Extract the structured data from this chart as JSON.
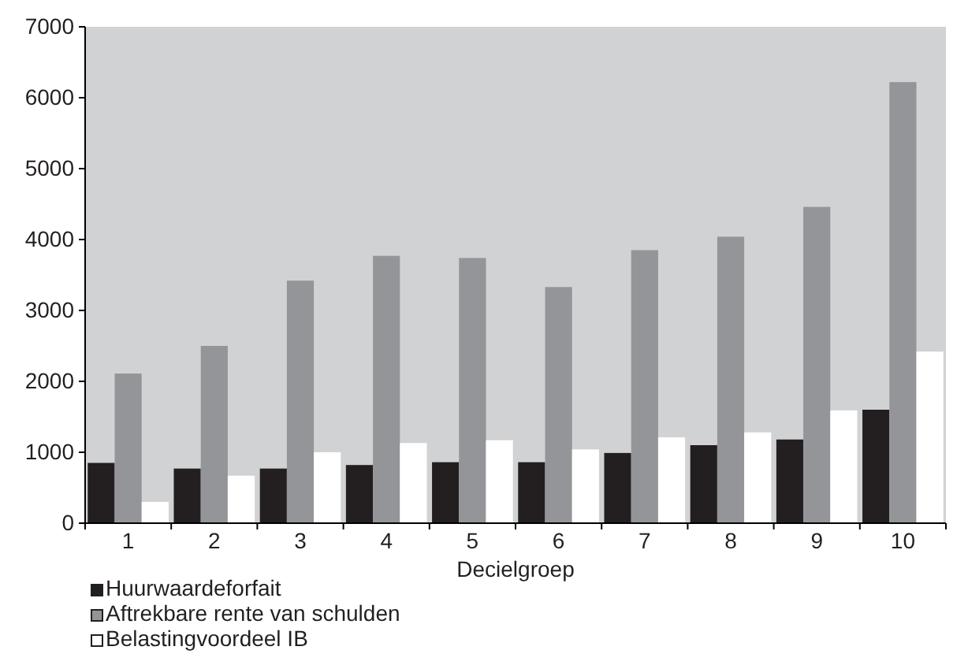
{
  "chart_data": {
    "type": "bar",
    "xlabel": "Decielgroep",
    "categories": [
      "1",
      "2",
      "3",
      "4",
      "5",
      "6",
      "7",
      "8",
      "9",
      "10"
    ],
    "series": [
      {
        "name": "Huurwaardeforfait",
        "color": "#231f20",
        "values": [
          850,
          770,
          770,
          820,
          860,
          860,
          990,
          1100,
          1180,
          1600
        ]
      },
      {
        "name": "Aftrekbare rente van schulden",
        "color": "#939598",
        "values": [
          2110,
          2500,
          3420,
          3770,
          3740,
          3330,
          3850,
          4040,
          4460,
          6220
        ]
      },
      {
        "name": "Belastingvoordeel IB",
        "color": "#ffffff",
        "values": [
          300,
          670,
          1000,
          1130,
          1170,
          1040,
          1210,
          1280,
          1590,
          2420
        ]
      }
    ],
    "ylim": [
      0,
      7000
    ],
    "yticks": [
      0,
      1000,
      2000,
      3000,
      4000,
      5000,
      6000,
      7000
    ],
    "grid": false,
    "legend": "bottom"
  }
}
